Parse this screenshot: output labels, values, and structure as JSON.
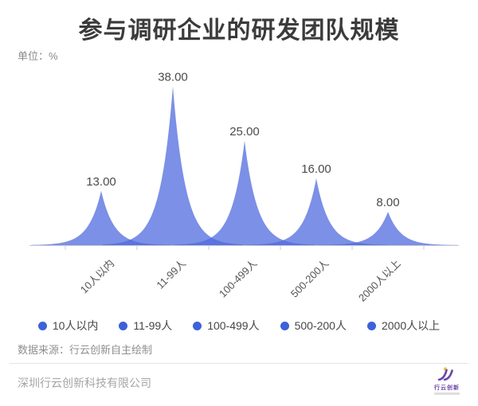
{
  "title": "参与调研企业的研发团队规模",
  "unit_label": "单位：%",
  "source_note": "数据来源：行云创新自主绘制",
  "footer": {
    "company": "深圳行云创新科技有限公司",
    "logo_text": "行云创新"
  },
  "colors": {
    "area_fill": "rgba(79,107,222,0.75)",
    "axis": "#c8cbd2",
    "value_label": "#4b4b4b",
    "legend_dot": "#3c61d9",
    "logo_purple": "#6b46a8",
    "logo_yellow": "#f2c04a"
  },
  "chart_data": {
    "type": "area",
    "title": "参与调研企业的研发团队规模",
    "unit": "%",
    "categories": [
      "10人以内",
      "11-99人",
      "100-499人",
      "500-200人",
      "2000人以上"
    ],
    "values": [
      13,
      38,
      25,
      16,
      8
    ],
    "value_labels": [
      "13.00",
      "38.00",
      "25.00",
      "16.00",
      "8.00"
    ],
    "legend": [
      "10人以内",
      "11-99人",
      "100-499人",
      "500-200人",
      "2000人以上"
    ],
    "legend_position": "bottom",
    "ylim": [
      0,
      40
    ],
    "grid": false,
    "shape": "sharp spike area peaks with translucent overlap",
    "x_axis": "category axis, ticks at category boundaries, labels rotated 45deg"
  }
}
